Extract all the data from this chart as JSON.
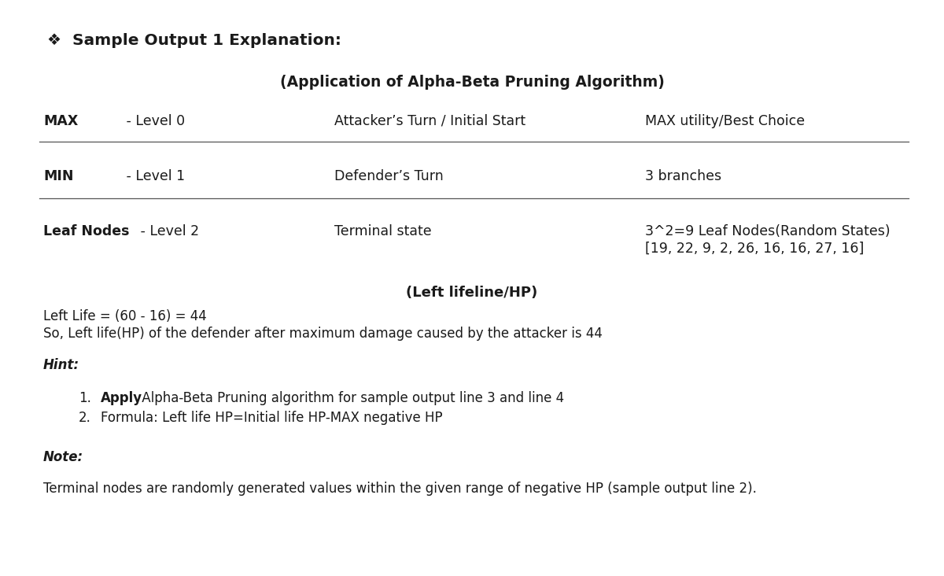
{
  "title_bullet": "❖  Sample Output 1 Explanation:",
  "subtitle": "(Application of Alpha-Beta Pruning Algorithm)",
  "table_rows": [
    {
      "col1_bold": "MAX",
      "col1_normal": " - Level 0",
      "col2": "Attacker’s Turn / Initial Start",
      "col3": "MAX utility/Best Choice"
    },
    {
      "col1_bold": "MIN",
      "col1_normal": " - Level 1",
      "col2": "Defender’s Turn",
      "col3": "3 branches"
    },
    {
      "col1_bold": "Leaf Nodes",
      "col1_normal": " - Level 2",
      "col2": "Terminal state",
      "col3_line1": "3^2=9 Leaf Nodes(Random States)",
      "col3_line2": "[19, 22, 9, 2, 26, 16, 16, 27, 16]"
    }
  ],
  "section_lifeline_header": "(Left lifeline/HP)",
  "lifeline_line1": "Left Life = (60 - 16) = 44",
  "lifeline_line2": "So, Left life(HP) of the defender after maximum damage caused by the attacker is 44",
  "hint_label": "Hint:",
  "hint_items": [
    {
      "bold": "Apply",
      "normal": " Alpha-Beta Pruning algorithm for sample output line 3 and line 4"
    },
    {
      "bold": "",
      "normal": "Formula: Left life HP=Initial life HP-MAX negative HP"
    }
  ],
  "note_label": "Note:",
  "note_text": "Terminal nodes are randomly generated values within the given range of negative HP (sample output line 2).",
  "bg_color": "#ffffff",
  "text_color": "#1a1a1a",
  "line_color": "#555555",
  "font_size_title": 14.5,
  "font_size_subtitle": 13.5,
  "font_size_table": 12.5,
  "font_size_body": 12.0,
  "fig_width": 12.0,
  "fig_height": 7.32,
  "dpi": 100
}
